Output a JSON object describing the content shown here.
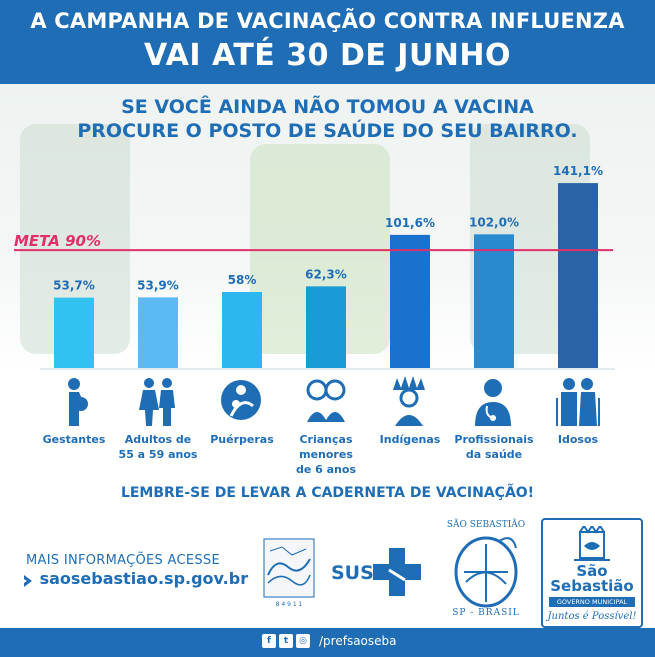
{
  "header": {
    "line1": "A CAMPANHA DE VACINAÇÃO CONTRA INFLUENZA",
    "line2": "VAI ATÉ 30 DE JUNHO"
  },
  "subheading": {
    "line1": "SE VOCÊ AINDA NÃO TOMOU A VACINA",
    "line2": "PROCURE O POSTO DE SAÚDE DO SEU BAIRRO."
  },
  "chart_data": {
    "type": "bar",
    "categories": [
      "Gestantes",
      "Adultos de 55 a 59 anos",
      "Puérperas",
      "Crianças menores de 6 anos",
      "Indígenas",
      "Profissionais da saúde",
      "Idosos"
    ],
    "values": [
      53.7,
      53.9,
      58,
      62.3,
      101.6,
      102.0,
      141.1
    ],
    "value_labels": [
      "53,7%",
      "53,9%",
      "58%",
      "62,3%",
      "101,6%",
      "102,0%",
      "141,1%"
    ],
    "bar_colors": [
      "#33c1f2",
      "#5bbaf4",
      "#2cb8ee",
      "#1a9ad6",
      "#1a72cc",
      "#2a8ad0",
      "#2864a6"
    ],
    "reference_line": {
      "label": "META 90%",
      "value": 90,
      "color": "#e0306b"
    },
    "ylim": [
      0,
      145
    ]
  },
  "category_labels": [
    [
      "Gestantes"
    ],
    [
      "Adultos de",
      "55 a 59 anos"
    ],
    [
      "Puérperas"
    ],
    [
      "Crianças",
      "menores",
      "de 6 anos"
    ],
    [
      "Indígenas"
    ],
    [
      "Profissionais",
      "da saúde"
    ],
    [
      "Idosos"
    ]
  ],
  "icons": [
    "pregnant-woman-icon",
    "adults-couple-icon",
    "mother-baby-icon",
    "children-icon",
    "indigenous-person-icon",
    "health-professional-icon",
    "elderly-couple-icon"
  ],
  "reminder": "LEMBRE-SE DE LEVAR A CADERNETA DE VACINAÇÃO!",
  "info": {
    "title": "MAIS INFORMAÇÕES ACESSE",
    "url": "saosebastiao.sp.gov.br"
  },
  "logos": {
    "sus": "SUS",
    "city_top": "SÃO SEBASTIÃO",
    "city_bottom": "SP - BRASIL",
    "gov_name_1": "São",
    "gov_name_2": "Sebastião",
    "gov_subtitle": "GOVERNO MUNICIPAL",
    "gov_slogan": "Juntos é Possível!"
  },
  "footer": {
    "handle": "/prefsaoseba"
  },
  "colors": {
    "primary": "#1f6db5",
    "meta": "#e0306b"
  }
}
